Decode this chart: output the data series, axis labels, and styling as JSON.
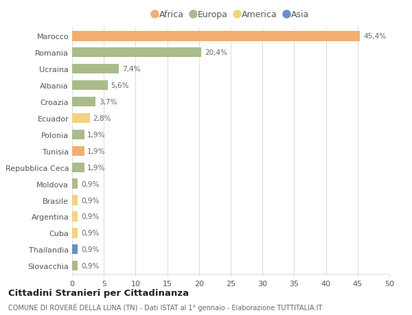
{
  "categories": [
    "Slovacchia",
    "Thailandia",
    "Cuba",
    "Argentina",
    "Brasile",
    "Moldova",
    "Repubblica Ceca",
    "Tunisia",
    "Polonia",
    "Ecuador",
    "Croazia",
    "Albania",
    "Ucraina",
    "Romania",
    "Marocco"
  ],
  "values": [
    0.9,
    0.9,
    0.9,
    0.9,
    0.9,
    0.9,
    1.9,
    1.9,
    1.9,
    2.8,
    3.7,
    5.6,
    7.4,
    20.4,
    45.4
  ],
  "labels": [
    "0,9%",
    "0,9%",
    "0,9%",
    "0,9%",
    "0,9%",
    "0,9%",
    "1,9%",
    "1,9%",
    "1,9%",
    "2,8%",
    "3,7%",
    "5,6%",
    "7,4%",
    "20,4%",
    "45,4%"
  ],
  "continents": [
    "Europa",
    "Asia",
    "America",
    "America",
    "America",
    "Europa",
    "Europa",
    "Africa",
    "Europa",
    "America",
    "Europa",
    "Europa",
    "Europa",
    "Europa",
    "Africa"
  ],
  "colors": {
    "Africa": "#F2AE72",
    "Europa": "#AABB8C",
    "America": "#F2D47E",
    "Asia": "#6B8FC4"
  },
  "legend_order": [
    "Africa",
    "Europa",
    "America",
    "Asia"
  ],
  "title": "Cittadini Stranieri per Cittadinanza",
  "subtitle": "COMUNE DI ROVERÈ DELLA LUNA (TN) - Dati ISTAT al 1° gennaio - Elaborazione TUTTITALIA.IT",
  "xlim": [
    0,
    50
  ],
  "xticks": [
    0,
    5,
    10,
    15,
    20,
    25,
    30,
    35,
    40,
    45,
    50
  ],
  "bg_color": "#ffffff",
  "grid_color": "#dddddd",
  "bar_height": 0.6
}
